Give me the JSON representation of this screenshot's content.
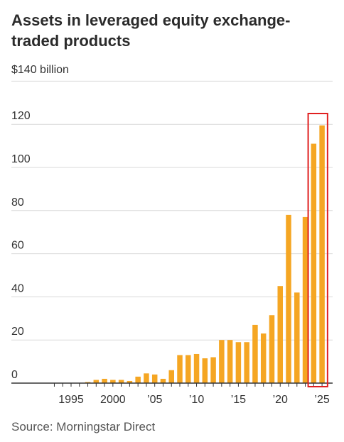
{
  "title": "Assets in leveraged equity exchange-traded products",
  "source": "Source: Morningstar Direct",
  "colors": {
    "bar": "#f5a623",
    "grid": "#d9d9d9",
    "axis": "#333333",
    "highlight": "#e02020"
  },
  "chart_data": {
    "type": "bar",
    "title": "Assets in leveraged equity exchange-traded products",
    "y_top_label": "$140 billion",
    "y_ticks": [
      0,
      20,
      40,
      60,
      80,
      100,
      120
    ],
    "ylim": [
      0,
      140
    ],
    "x_tick_labels": [
      {
        "year": 1995,
        "label": "1995"
      },
      {
        "year": 2000,
        "label": "2000"
      },
      {
        "year": 2005,
        "label": "’05"
      },
      {
        "year": 2010,
        "label": "’10"
      },
      {
        "year": 2015,
        "label": "’15"
      },
      {
        "year": 2020,
        "label": "’20"
      },
      {
        "year": 2025,
        "label": "’25"
      }
    ],
    "grid": true,
    "highlight_years": [
      2024,
      2025
    ],
    "series": [
      {
        "points": [
          {
            "year": 1997,
            "value": 0.5
          },
          {
            "year": 1998,
            "value": 1.5
          },
          {
            "year": 1999,
            "value": 2
          },
          {
            "year": 2000,
            "value": 1.5
          },
          {
            "year": 2001,
            "value": 1.5
          },
          {
            "year": 2002,
            "value": 1
          },
          {
            "year": 2003,
            "value": 3
          },
          {
            "year": 2004,
            "value": 4.5
          },
          {
            "year": 2005,
            "value": 4
          },
          {
            "year": 2006,
            "value": 2
          },
          {
            "year": 2007,
            "value": 6
          },
          {
            "year": 2008,
            "value": 13
          },
          {
            "year": 2009,
            "value": 13
          },
          {
            "year": 2010,
            "value": 13.5
          },
          {
            "year": 2011,
            "value": 11.5
          },
          {
            "year": 2012,
            "value": 12
          },
          {
            "year": 2013,
            "value": 20
          },
          {
            "year": 2014,
            "value": 20
          },
          {
            "year": 2015,
            "value": 19
          },
          {
            "year": 2016,
            "value": 19
          },
          {
            "year": 2017,
            "value": 27
          },
          {
            "year": 2018,
            "value": 23
          },
          {
            "year": 2019,
            "value": 31.5
          },
          {
            "year": 2020,
            "value": 45
          },
          {
            "year": 2021,
            "value": 78
          },
          {
            "year": 2022,
            "value": 42
          },
          {
            "year": 2023,
            "value": 77
          },
          {
            "year": 2024,
            "value": 111
          },
          {
            "year": 2025,
            "value": 119.5
          }
        ]
      }
    ]
  }
}
